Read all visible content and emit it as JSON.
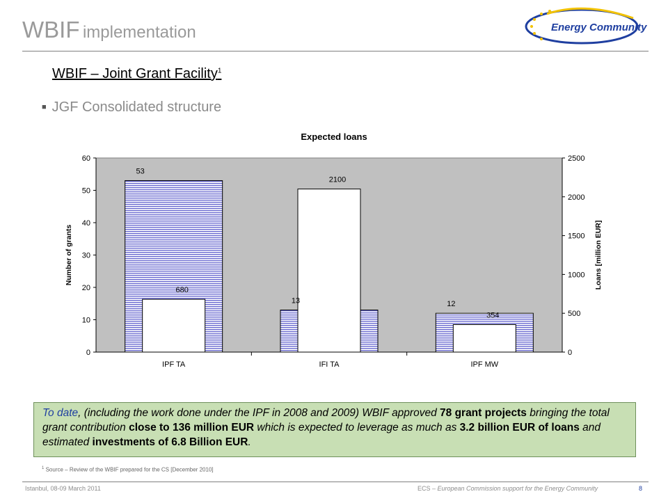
{
  "title": {
    "main": "WBIF",
    "rest": "implementation"
  },
  "logo": {
    "text": "Energy Community"
  },
  "subtitle": {
    "text": "WBIF – Joint Grant Facility",
    "sup": "1"
  },
  "bullet": {
    "text": "JGF Consolidated structure"
  },
  "chart_data": {
    "type": "bar",
    "title": "Expected loans",
    "categories": [
      "IPF TA",
      "IFI TA",
      "IPF MW"
    ],
    "series": [
      {
        "axis": "left",
        "values": [
          53,
          13,
          12
        ],
        "pattern": "blue-horizontal-stripes"
      },
      {
        "axis": "right",
        "values": [
          680,
          2100,
          354
        ],
        "pattern": "white"
      }
    ],
    "ylabel_left": "Number of grants",
    "ylabel_right": "Loans [million EUR]",
    "ylim_left": [
      0,
      60
    ],
    "ylim_right": [
      0,
      2500
    ],
    "yticks_left": [
      "0",
      "10",
      "20",
      "30",
      "40",
      "50",
      "60"
    ],
    "yticks_right": [
      "0",
      "500",
      "1000",
      "1500",
      "2000",
      "2500"
    ],
    "grid": false,
    "legend": "none",
    "colors": {
      "stripe": "#6a6ad0",
      "plot_bg": "#c0c0c0"
    }
  },
  "note": {
    "p1": "To date",
    "p2": ", (including the work done under the IPF in 2008 and 2009) WBIF approved ",
    "b1": "78 grant projects",
    "p3": " bringing the total grant contribution ",
    "b2": "close to 136 million EUR",
    "p4": " which is expected to leverage as much as ",
    "b3": "3.2 billion EUR of loans",
    "p5": " and estimated ",
    "b4": "investments of 6.8 Billion EUR",
    "p6": "."
  },
  "footnote": {
    "sup": "1",
    "text": "Source – Review of the WBIF prepared for the CS [December 2010]"
  },
  "footer": {
    "left": "Istanbul, 08-09 March 2011",
    "right_prefix": "ECS – ",
    "right_italic": "European Commission support for the Energy Community",
    "page": "8"
  }
}
